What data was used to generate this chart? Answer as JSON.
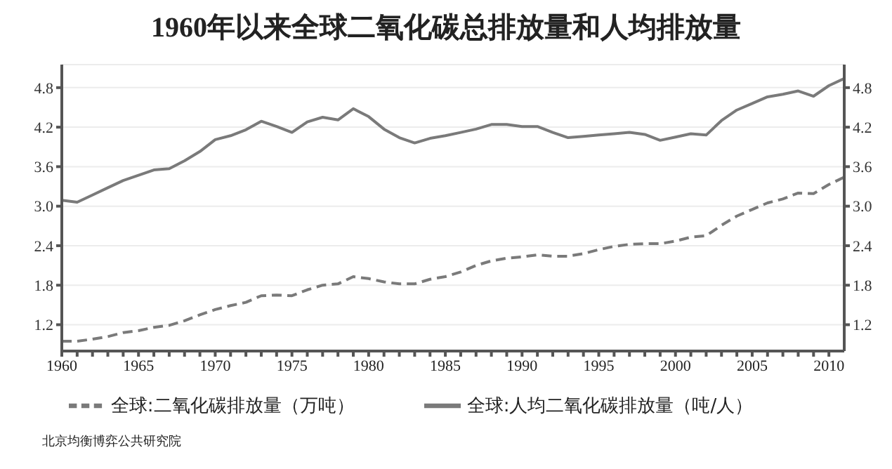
{
  "chart_data": {
    "type": "line",
    "title": "1960年以来全球二氧化碳总排放量和人均排放量",
    "x": [
      1960,
      1961,
      1962,
      1963,
      1964,
      1965,
      1966,
      1967,
      1968,
      1969,
      1970,
      1971,
      1972,
      1973,
      1974,
      1975,
      1976,
      1977,
      1978,
      1979,
      1980,
      1981,
      1982,
      1983,
      1984,
      1985,
      1986,
      1987,
      1988,
      1989,
      1990,
      1991,
      1992,
      1993,
      1994,
      1995,
      1996,
      1997,
      1998,
      1999,
      2000,
      2001,
      2002,
      2003,
      2004,
      2005,
      2006,
      2007,
      2008,
      2009,
      2010,
      2011
    ],
    "series": [
      {
        "name": "全球:二氧化碳排放量（万吨）",
        "color": "#7a7a7a",
        "line_style": "dashed",
        "values": [
          0.95,
          0.95,
          0.98,
          1.02,
          1.08,
          1.11,
          1.16,
          1.19,
          1.26,
          1.35,
          1.43,
          1.49,
          1.54,
          1.64,
          1.65,
          1.64,
          1.73,
          1.8,
          1.82,
          1.93,
          1.9,
          1.85,
          1.82,
          1.82,
          1.89,
          1.93,
          2.0,
          2.1,
          2.17,
          2.21,
          2.23,
          2.26,
          2.24,
          2.24,
          2.28,
          2.34,
          2.39,
          2.42,
          2.43,
          2.43,
          2.47,
          2.53,
          2.55,
          2.71,
          2.85,
          2.95,
          3.05,
          3.11,
          3.2,
          3.19,
          3.33,
          3.44
        ]
      },
      {
        "name": "全球:人均二氧化碳排放量（吨/人）",
        "color": "#7a7a7a",
        "line_style": "solid",
        "values": [
          3.09,
          3.06,
          3.17,
          3.28,
          3.39,
          3.47,
          3.55,
          3.57,
          3.69,
          3.83,
          4.01,
          4.07,
          4.16,
          4.29,
          4.21,
          4.12,
          4.28,
          4.35,
          4.31,
          4.48,
          4.36,
          4.17,
          4.04,
          3.96,
          4.03,
          4.07,
          4.12,
          4.17,
          4.24,
          4.24,
          4.21,
          4.21,
          4.12,
          4.04,
          4.06,
          4.08,
          4.1,
          4.12,
          4.09,
          4.0,
          4.05,
          4.1,
          4.08,
          4.3,
          4.46,
          4.56,
          4.66,
          4.7,
          4.75,
          4.67,
          4.83,
          4.94
        ]
      }
    ],
    "xlim": [
      1960,
      2011
    ],
    "xticks": [
      1960,
      {
        "value": 1961,
        "label": null
      },
      {
        "value": 1962,
        "label": null
      },
      {
        "value": 1963,
        "label": null
      },
      {
        "value": 1964,
        "label": null
      },
      1965,
      {
        "value": 1966,
        "label": null
      },
      {
        "value": 1967,
        "label": null
      },
      {
        "value": 1968,
        "label": null
      },
      {
        "value": 1969,
        "label": null
      },
      1970,
      {
        "value": 1971,
        "label": null
      },
      {
        "value": 1972,
        "label": null
      },
      {
        "value": 1973,
        "label": null
      },
      {
        "value": 1974,
        "label": null
      },
      1975,
      {
        "value": 1976,
        "label": null
      },
      {
        "value": 1977,
        "label": null
      },
      {
        "value": 1978,
        "label": null
      },
      {
        "value": 1979,
        "label": null
      },
      1980,
      {
        "value": 1981,
        "label": null
      },
      {
        "value": 1982,
        "label": null
      },
      {
        "value": 1983,
        "label": null
      },
      {
        "value": 1984,
        "label": null
      },
      1985,
      {
        "value": 1986,
        "label": null
      },
      {
        "value": 1987,
        "label": null
      },
      {
        "value": 1988,
        "label": null
      },
      {
        "value": 1989,
        "label": null
      },
      1990,
      {
        "value": 1991,
        "label": null
      },
      {
        "value": 1992,
        "label": null
      },
      {
        "value": 1993,
        "label": null
      },
      {
        "value": 1994,
        "label": null
      },
      1995,
      {
        "value": 1996,
        "label": null
      },
      {
        "value": 1997,
        "label": null
      },
      {
        "value": 1998,
        "label": null
      },
      {
        "value": 1999,
        "label": null
      },
      2000,
      {
        "value": 2001,
        "label": null
      },
      {
        "value": 2002,
        "label": null
      },
      {
        "value": 2003,
        "label": null
      },
      {
        "value": 2004,
        "label": null
      },
      2005,
      {
        "value": 2006,
        "label": null
      },
      {
        "value": 2007,
        "label": null
      },
      {
        "value": 2008,
        "label": null
      },
      {
        "value": 2009,
        "label": null
      },
      2010
    ],
    "ylim": [
      0.8,
      5.15
    ],
    "yticks": [
      {
        "value": 1.2,
        "label": "1.2"
      },
      {
        "value": 1.8,
        "label": "1.8"
      },
      {
        "value": 2.4,
        "label": "2.4"
      },
      {
        "value": 3.0,
        "label": "3.0"
      },
      {
        "value": 3.6,
        "label": "3.6"
      },
      {
        "value": 4.2,
        "label": "4.2"
      },
      {
        "value": 4.8,
        "label": "4.8"
      }
    ],
    "y2lim": [
      0.8,
      5.15
    ],
    "y2ticks": [
      {
        "value": 1.2,
        "label": "1.2"
      },
      {
        "value": 1.8,
        "label": "1.8"
      },
      {
        "value": 2.4,
        "label": "2.4"
      },
      {
        "value": 3.0,
        "label": "3.0"
      },
      {
        "value": 3.6,
        "label": "3.6"
      },
      {
        "value": 4.2,
        "label": "4.2"
      },
      {
        "value": 4.8,
        "label": "4.8"
      }
    ],
    "grid": "y",
    "legend": "bottom",
    "marker": "none",
    "annotations": [
      "北京均衡博弈公共研究院"
    ]
  }
}
